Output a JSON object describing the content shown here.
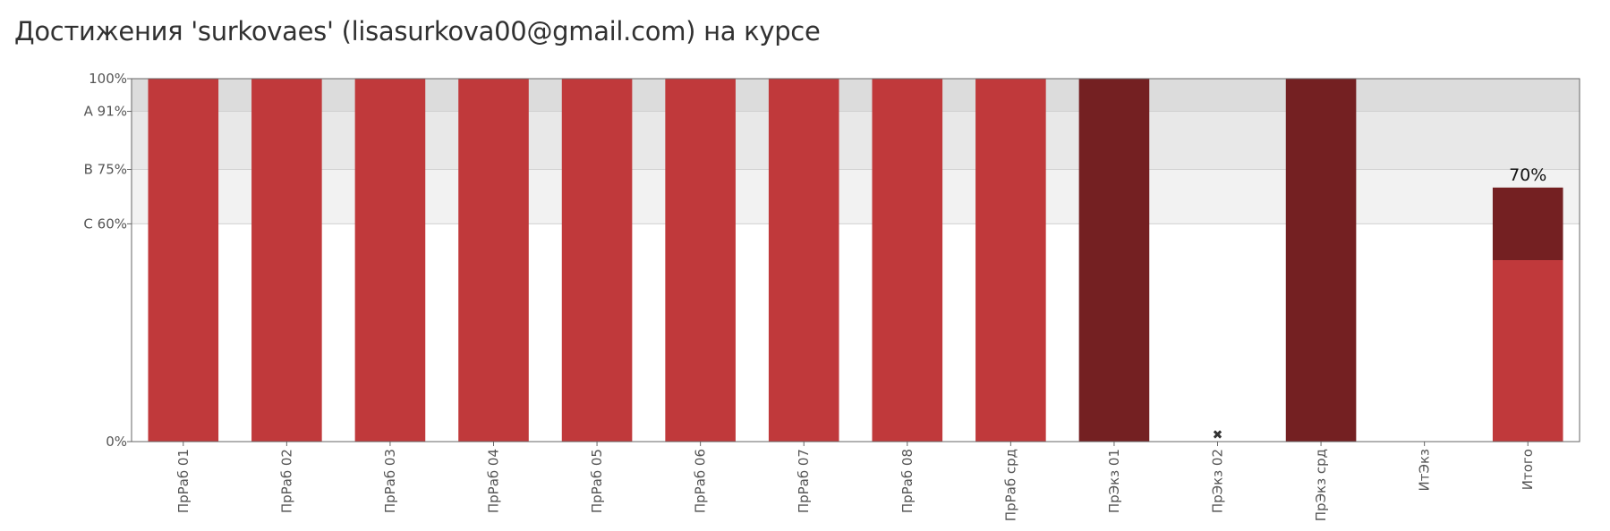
{
  "header": {
    "title": "Достижения 'surkovaes' (lisasurkova00@gmail.com) на курсе"
  },
  "chart_data": {
    "type": "bar",
    "stacked": true,
    "ylim": [
      0,
      100
    ],
    "yticks": [
      {
        "value": 0,
        "label": "0%"
      },
      {
        "value": 60,
        "label": "C 60%"
      },
      {
        "value": 75,
        "label": "B 75%"
      },
      {
        "value": 91,
        "label": "A 91%"
      },
      {
        "value": 100,
        "label": "100%"
      }
    ],
    "grade_bands": [
      {
        "from": 60,
        "to": 75,
        "color": "#f2f2f2"
      },
      {
        "from": 75,
        "to": 91,
        "color": "#e8e8e8"
      },
      {
        "from": 91,
        "to": 100,
        "color": "#dcdcdc"
      }
    ],
    "categories": [
      "ПрРаб 01",
      "ПрРаб 02",
      "ПрРаб 03",
      "ПрРаб 04",
      "ПрРаб 05",
      "ПрРаб 06",
      "ПрРаб 07",
      "ПрРаб 08",
      "ПрРаб срд",
      "ПрЭкз 01",
      "ПрЭкз 02",
      "ПрЭкз срд",
      "ИтЭкз",
      "Итого"
    ],
    "series": [
      {
        "color": "#c0393b",
        "values": [
          100,
          100,
          100,
          100,
          100,
          100,
          100,
          100,
          100,
          0,
          0,
          0,
          0,
          50
        ]
      },
      {
        "color": "#742022",
        "values": [
          0,
          0,
          0,
          0,
          0,
          0,
          0,
          0,
          0,
          100,
          0,
          100,
          0,
          20
        ]
      }
    ],
    "missing_marker": {
      "category_index": 10,
      "symbol": "✖"
    },
    "annotations": [
      {
        "category_index": 13,
        "text": "70%"
      }
    ],
    "grid": false,
    "legend": "none"
  }
}
